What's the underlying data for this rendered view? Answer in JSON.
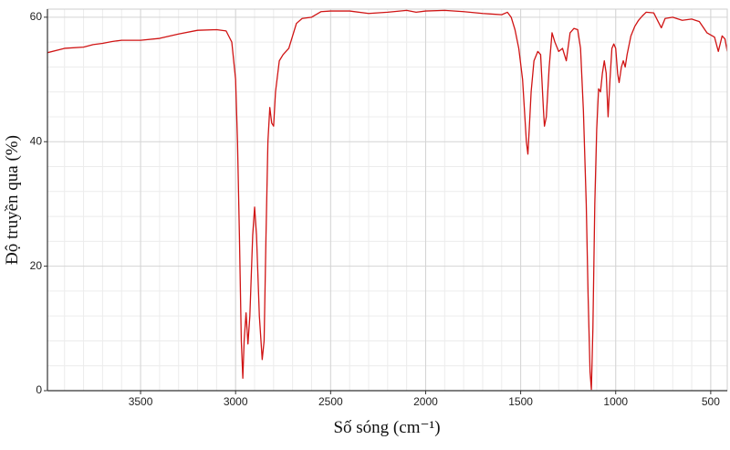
{
  "chart_data": {
    "type": "line",
    "xlabel": "Số sóng (cm⁻¹)",
    "ylabel": "Độ truyền qua (%)",
    "color": "#d01414",
    "grid": true,
    "xlim": [
      3990,
      413
    ],
    "ylim": [
      0,
      61.3
    ],
    "xticks": [
      3500,
      3000,
      2500,
      2000,
      1500,
      1000,
      500
    ],
    "yticks": [
      0,
      20,
      40,
      60
    ],
    "xminorticks": [
      3900,
      3800,
      3700,
      3600,
      3500,
      3400,
      3300,
      3200,
      3100,
      3000,
      2900,
      2800,
      2700,
      2600,
      2500,
      2400,
      2300,
      2200,
      2100,
      2000,
      1900,
      1800,
      1700,
      1600,
      1500,
      1400,
      1300,
      1200,
      1100,
      1000,
      900,
      800,
      700,
      600,
      500
    ],
    "yminorticks": [
      4,
      8,
      12,
      16,
      24,
      28,
      32,
      36,
      44,
      48,
      52,
      56
    ],
    "x": [
      3990,
      3900,
      3800,
      3750,
      3700,
      3650,
      3600,
      3500,
      3400,
      3300,
      3200,
      3100,
      3050,
      3020,
      3000,
      2990,
      2980,
      2970,
      2962,
      2955,
      2945,
      2935,
      2925,
      2910,
      2900,
      2890,
      2875,
      2860,
      2850,
      2840,
      2830,
      2820,
      2810,
      2800,
      2790,
      2770,
      2750,
      2720,
      2700,
      2680,
      2650,
      2600,
      2550,
      2500,
      2400,
      2300,
      2200,
      2100,
      2050,
      2000,
      1900,
      1800,
      1700,
      1650,
      1600,
      1570,
      1550,
      1530,
      1510,
      1490,
      1480,
      1470,
      1462,
      1455,
      1445,
      1430,
      1410,
      1395,
      1380,
      1375,
      1365,
      1350,
      1335,
      1320,
      1300,
      1280,
      1260,
      1240,
      1220,
      1200,
      1185,
      1170,
      1155,
      1145,
      1135,
      1128,
      1120,
      1110,
      1100,
      1090,
      1080,
      1070,
      1060,
      1050,
      1040,
      1030,
      1020,
      1010,
      1000,
      990,
      982,
      970,
      960,
      950,
      940,
      920,
      900,
      880,
      860,
      840,
      800,
      780,
      760,
      740,
      700,
      650,
      600,
      560,
      520,
      480,
      460,
      440,
      425,
      413
    ],
    "values": [
      54.3,
      55.0,
      55.2,
      55.6,
      55.8,
      56.1,
      56.3,
      56.3,
      56.6,
      57.3,
      57.9,
      58.0,
      57.8,
      56,
      50,
      40,
      25,
      8,
      2,
      8,
      12.5,
      7.5,
      12,
      25,
      29.5,
      25,
      12,
      5,
      8,
      25,
      40,
      45.5,
      43,
      42.5,
      48,
      53,
      54,
      55,
      57,
      59,
      59.8,
      60,
      60.9,
      61.0,
      61.0,
      60.6,
      60.8,
      61.1,
      60.8,
      61.0,
      61.1,
      60.9,
      60.6,
      60.5,
      60.4,
      60.8,
      60,
      58,
      55,
      50,
      45,
      40,
      38,
      42,
      48,
      53,
      54.5,
      54,
      45,
      42.5,
      44,
      52,
      57.5,
      56,
      54.5,
      55,
      53,
      57.5,
      58.2,
      58,
      55,
      45,
      30,
      15,
      3,
      0.2,
      10,
      30,
      42,
      48.5,
      48,
      51,
      53,
      51,
      44,
      50,
      55,
      55.7,
      55,
      51,
      49.5,
      52,
      53,
      52,
      54,
      57,
      58.5,
      59.5,
      60.2,
      60.8,
      60.7,
      59.5,
      58.3,
      59.8,
      60,
      59.5,
      59.7,
      59.3,
      57.5,
      56.8,
      54.5,
      57,
      56.5,
      54.5
    ]
  }
}
